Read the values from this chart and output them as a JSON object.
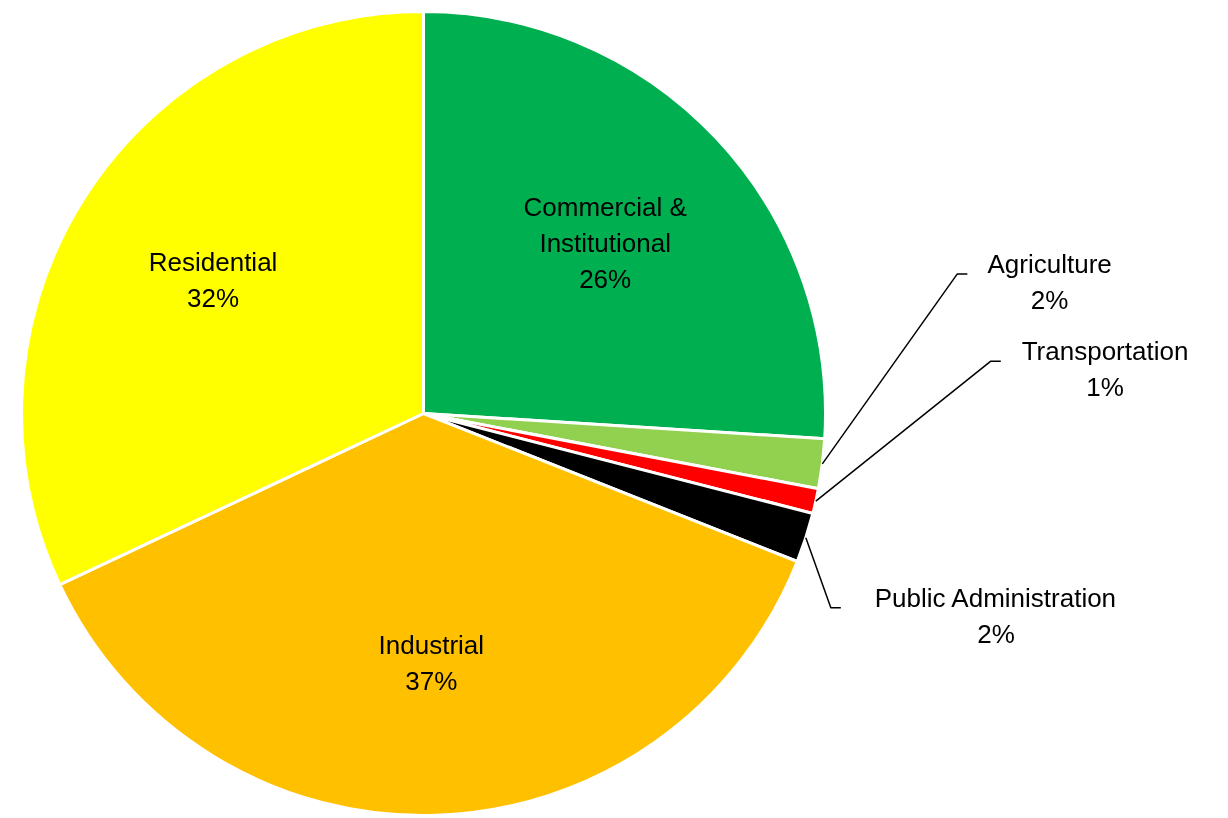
{
  "chart_data": {
    "type": "pie",
    "categories": [
      "Commercial & Institutional",
      "Agriculture",
      "Transportation",
      "Public Administration",
      "Industrial",
      "Residential"
    ],
    "values": [
      26,
      2,
      1,
      2,
      37,
      32
    ],
    "value_labels": [
      "26%",
      "2%",
      "1%",
      "2%",
      "37%",
      "32%"
    ],
    "colors": [
      "#00b050",
      "#92d050",
      "#ff0000",
      "#000000",
      "#ffc000",
      "#ffff00"
    ]
  }
}
